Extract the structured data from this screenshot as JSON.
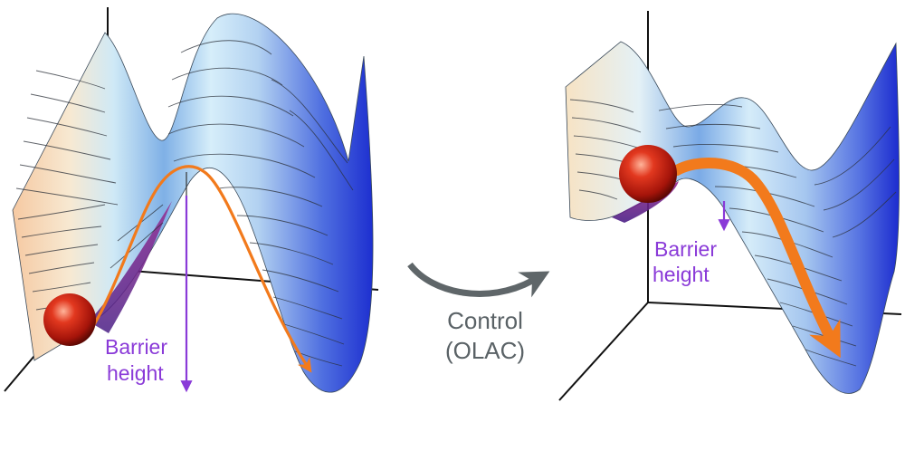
{
  "left_panel": {
    "barrier_label_line1": "Barrier",
    "barrier_label_line2": "height"
  },
  "center": {
    "control_line1": "Control",
    "control_line2": "(OLAC)"
  },
  "right_panel": {
    "barrier_label_line1": "Barrier",
    "barrier_label_line2": "height"
  },
  "colors": {
    "barrier_label": "#8a3ad8",
    "control_text": "#5a6266",
    "control_arrow": "#5f6669",
    "trajectory_arrow": "#f27a1c",
    "ball": "#c4190c",
    "axes": "#111111"
  }
}
